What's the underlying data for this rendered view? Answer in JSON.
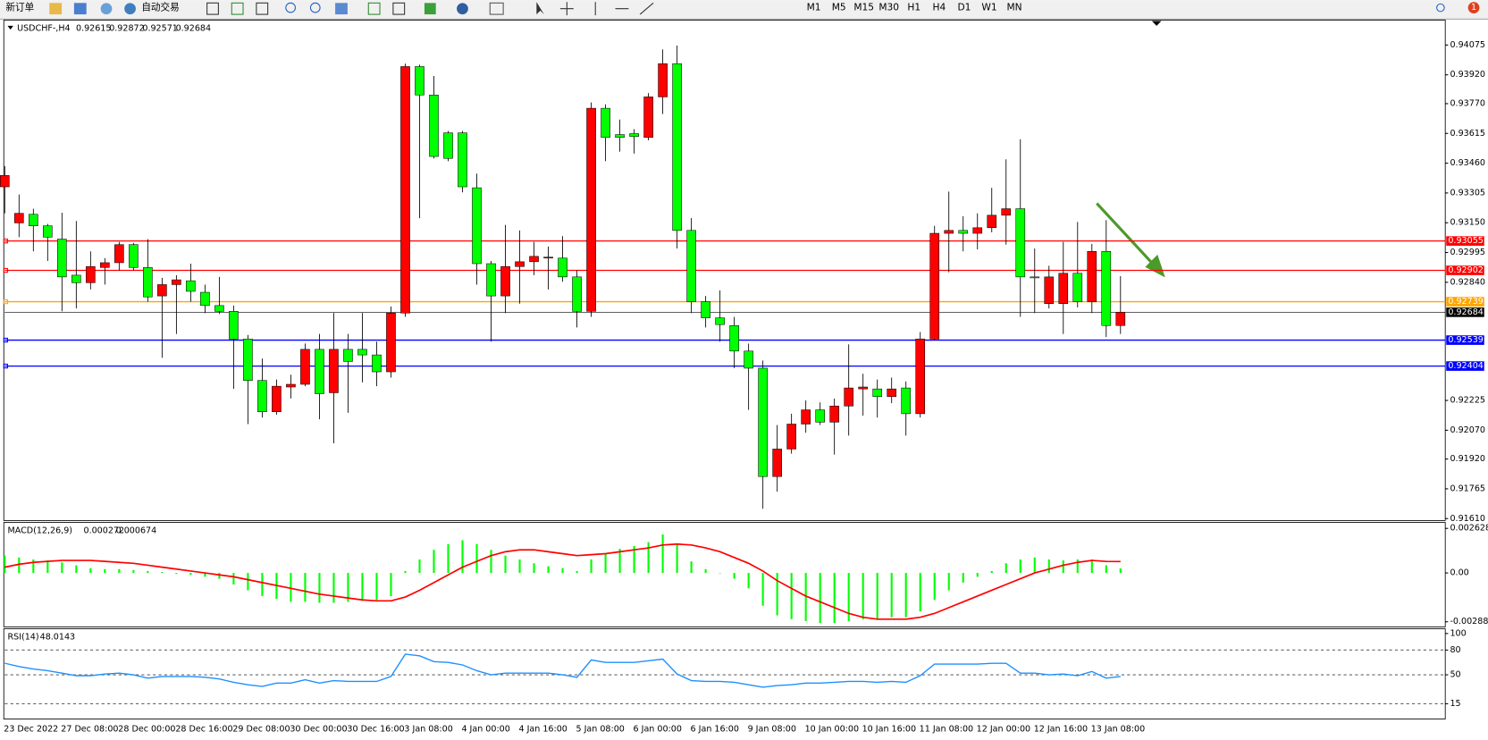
{
  "toolbar": {
    "new_order": "新订单",
    "auto_trading": "自动交易",
    "timeframes": [
      "M1",
      "M5",
      "M15",
      "M30",
      "H1",
      "H4",
      "D1",
      "W1",
      "MN"
    ],
    "notifications": "1"
  },
  "chart_data": [
    {
      "type": "candlestick",
      "symbol": "USDCHF-,H4",
      "up_color": "#ff0000",
      "down_color": "#00ff00",
      "categories": [
        "23 Dec 2022",
        null,
        null,
        null,
        "27 Dec 08:00",
        null,
        null,
        null,
        "28 Dec 00:00",
        null,
        null,
        null,
        "28 Dec 16:00",
        null,
        null,
        null,
        "29 Dec 08:00",
        null,
        null,
        null,
        "30 Dec 00:00",
        null,
        null,
        null,
        "30 Dec 16:00",
        null,
        null,
        null,
        "3 Jan 08:00",
        null,
        null,
        null,
        "4 Jan 00:00",
        null,
        null,
        null,
        "4 Jan 16:00",
        null,
        null,
        null,
        "5 Jan 08:00",
        null,
        null,
        null,
        "6 Jan 00:00",
        null,
        null,
        null,
        "6 Jan 16:00",
        null,
        null,
        null,
        "9 Jan 08:00",
        null,
        null,
        null,
        "10 Jan 00:00",
        null,
        null,
        null,
        "10 Jan 16:00",
        null,
        null,
        null,
        "11 Jan 08:00",
        null,
        null,
        null,
        "12 Jan 00:00",
        null,
        null,
        null,
        "12 Jan 16:00",
        null,
        null,
        null,
        "13 Jan 08:00",
        null,
        null
      ],
      "open": [
        0.93337,
        0.93149,
        0.93194,
        0.93134,
        0.93065,
        0.92877,
        0.92838,
        0.92917,
        0.92942,
        0.93036,
        0.92917,
        0.92769,
        0.92828,
        0.92848,
        0.92788,
        0.92719,
        0.92689,
        0.92545,
        0.92329,
        0.92166,
        0.92295,
        0.92309,
        0.92491,
        0.92265,
        0.92491,
        0.92491,
        0.92462,
        0.92374,
        0.9268,
        0.93963,
        0.93815,
        0.93618,
        0.93618,
        0.93332,
        0.92937,
        0.92769,
        0.92922,
        0.92947,
        0.92966,
        0.92966,
        0.92868,
        0.92689,
        0.93746,
        0.93609,
        0.93614,
        0.93594,
        0.93805,
        0.93978,
        0.9311,
        0.92739,
        0.92655,
        0.92615,
        0.92482,
        0.92393,
        0.91829,
        0.91972,
        0.92102,
        0.92176,
        0.92112,
        0.92196,
        0.92285,
        0.92285,
        0.92245,
        0.9229,
        0.92156,
        0.92545,
        0.93095,
        0.9311,
        0.93095,
        0.93124,
        0.93189,
        0.93223,
        0.92868,
        0.92729,
        0.92729,
        0.92887,
        0.92739,
        0.93001,
        0.92615
      ],
      "high": [
        0.93445,
        0.93297,
        0.93223,
        0.93144,
        0.93202,
        0.93159,
        0.93001,
        0.92966,
        0.9305,
        0.93045,
        0.93065,
        0.92863,
        0.92877,
        0.92937,
        0.92828,
        0.92868,
        0.92719,
        0.92566,
        0.92443,
        0.92334,
        0.92359,
        0.92521,
        0.92571,
        0.9268,
        0.92571,
        0.9268,
        0.92531,
        0.92714,
        0.93978,
        0.93973,
        0.93914,
        0.93628,
        0.93628,
        0.93406,
        0.92951,
        0.93139,
        0.9311,
        0.9305,
        0.93026,
        0.9308,
        0.92902,
        0.93776,
        0.93766,
        0.93687,
        0.93637,
        0.93825,
        0.94052,
        0.94072,
        0.93174,
        0.92769,
        0.92798,
        0.9266,
        0.92521,
        0.92433,
        0.92097,
        0.92156,
        0.92225,
        0.92215,
        0.92235,
        0.92517,
        0.92364,
        0.92334,
        0.92344,
        0.92324,
        0.92581,
        0.93134,
        0.93312,
        0.93184,
        0.93199,
        0.93332,
        0.9348,
        0.93584,
        0.93016,
        0.92926,
        0.9305,
        0.93154,
        0.9304,
        0.93164,
        0.92872
      ],
      "low": [
        0.93199,
        0.93075,
        0.93001,
        0.92951,
        0.92689,
        0.92704,
        0.92803,
        0.92828,
        0.92902,
        0.92902,
        0.92739,
        0.92447,
        0.92571,
        0.92739,
        0.9268,
        0.92675,
        0.92285,
        0.92102,
        0.92136,
        0.92151,
        0.92235,
        0.92299,
        0.92127,
        0.92002,
        0.92161,
        0.92319,
        0.92299,
        0.92344,
        0.9266,
        0.93174,
        0.93485,
        0.9347,
        0.93308,
        0.92828,
        0.92531,
        0.9268,
        0.92729,
        0.92877,
        0.92803,
        0.92843,
        0.92605,
        0.9266,
        0.9347,
        0.9352,
        0.9351,
        0.93579,
        0.93716,
        0.93016,
        0.9268,
        0.92605,
        0.92531,
        0.92393,
        0.92176,
        0.91661,
        0.9175,
        0.91948,
        0.92057,
        0.92097,
        0.91943,
        0.92042,
        0.92146,
        0.92136,
        0.92211,
        0.92042,
        0.92136,
        0.92541,
        0.92892,
        0.93001,
        0.93011,
        0.931,
        0.93036,
        0.9266,
        0.9268,
        0.92704,
        0.92571,
        0.92709,
        0.9268,
        0.92555,
        0.92571
      ],
      "close": [
        0.93396,
        0.93199,
        0.93134,
        0.93075,
        0.92868,
        0.92838,
        0.92922,
        0.92942,
        0.93036,
        0.92917,
        0.92764,
        0.92828,
        0.92853,
        0.92793,
        0.92719,
        0.92689,
        0.92545,
        0.92329,
        0.92166,
        0.92299,
        0.92309,
        0.92491,
        0.9226,
        0.92491,
        0.92428,
        0.92462,
        0.92374,
        0.9268,
        0.93963,
        0.93815,
        0.93495,
        0.93485,
        0.93337,
        0.92937,
        0.92769,
        0.92922,
        0.92947,
        0.92975,
        0.92971,
        0.92868,
        0.92689,
        0.93746,
        0.93594,
        0.93594,
        0.93599,
        0.93805,
        0.93978,
        0.9311,
        0.92739,
        0.92655,
        0.9262,
        0.92482,
        0.92393,
        0.91829,
        0.91972,
        0.92102,
        0.92176,
        0.92112,
        0.92196,
        0.9229,
        0.92295,
        0.92245,
        0.92285,
        0.92156,
        0.92545,
        0.93095,
        0.9311,
        0.93095,
        0.93124,
        0.93189,
        0.93223,
        0.92868,
        0.92863,
        0.92868,
        0.92887,
        0.92739,
        0.93001,
        0.92615,
        0.92684
      ],
      "ylim": [
        0.916,
        0.942
      ],
      "yticks": [
        0.94075,
        {
          "value": 0.9392,
          "label": "0.93920"
        },
        {
          "value": 0.9377,
          "label": "0.93770"
        },
        0.93615,
        {
          "value": 0.9346,
          "label": "0.93460"
        },
        0.93305,
        {
          "value": 0.9315,
          "label": "0.93150"
        },
        0.92995,
        {
          "value": 0.9284,
          "label": "0.92840"
        },
        0.92225,
        {
          "value": 0.9207,
          "label": "0.92070"
        },
        {
          "value": 0.9192,
          "label": "0.91920"
        },
        0.91765,
        {
          "value": 0.9161,
          "label": "0.91610"
        }
      ],
      "hlines": [
        {
          "value": 0.93055,
          "color": "#ff0000"
        },
        {
          "value": 0.92902,
          "color": "#ff0000"
        },
        {
          "value": 0.92739,
          "color": "#ffa500"
        },
        {
          "value": 0.92539,
          "color": "#0000ff"
        },
        {
          "value": 0.92404,
          "color": "#0000ff"
        }
      ]
    },
    {
      "type": "macd",
      "title": "MACD(12,26,9)",
      "histogram_color": "#00ff00",
      "signal_color": "#ff0000",
      "histogram": [
        0.001022,
        0.000909,
        0.000795,
        0.000738,
        0.000625,
        0.000454,
        0.000284,
        0.000227,
        0.000227,
        0.00017,
        0.000114,
        5.7e-05,
        -5.7e-05,
        -0.000114,
        -0.000227,
        -0.000341,
        -0.000682,
        -0.001022,
        -0.001363,
        -0.001534,
        -0.001704,
        -0.001704,
        -0.001761,
        -0.001761,
        -0.001704,
        -0.001647,
        -0.00159,
        -0.001363,
        0.000114,
        0.000795,
        0.001363,
        0.001704,
        0.001931,
        0.001704,
        0.001363,
        0.001022,
        0.000795,
        0.000568,
        0.000398,
        0.000284,
        0.000114,
        0.000795,
        0.001136,
        0.00142,
        0.00159,
        0.001818,
        0.002272,
        0.001704,
        0.000682,
        0.000227,
        0,
        -0.000341,
        -0.000909,
        -0.001931,
        -0.002499,
        -0.002726,
        -0.00284,
        -0.002954,
        -0.002954,
        -0.00284,
        -0.002726,
        -0.002726,
        -0.002613,
        -0.002613,
        -0.002272,
        -0.00159,
        -0.001022,
        -0.000568,
        -0.000227,
        0.000114,
        0.000568,
        0.000795,
        0.000909,
        0.000795,
        0.000738,
        0.000795,
        0.000795,
        0.000454,
        0.000272
      ],
      "signal": [
        0.000341,
        0.000511,
        0.000625,
        0.000682,
        0.000738,
        0.000738,
        0.000738,
        0.000682,
        0.000625,
        0.000568,
        0.000454,
        0.000341,
        0.000227,
        0.000114,
        0,
        -0.000114,
        -0.000227,
        -0.000398,
        -0.000568,
        -0.000738,
        -0.000909,
        -0.001079,
        -0.00125,
        -0.001363,
        -0.001477,
        -0.00159,
        -0.001647,
        -0.001647,
        -0.00142,
        -0.001022,
        -0.000568,
        -0.000114,
        0.000341,
        0.000682,
        0.001022,
        0.00125,
        0.001363,
        0.001363,
        0.00125,
        0.001136,
        0.001022,
        0.001079,
        0.001136,
        0.00125,
        0.001363,
        0.001477,
        0.001647,
        0.001704,
        0.001647,
        0.001477,
        0.00125,
        0.000909,
        0.000568,
        0.000114,
        -0.000454,
        -0.000909,
        -0.001363,
        -0.001704,
        -0.002045,
        -0.002386,
        -0.002613,
        -0.002726,
        -0.002726,
        -0.002726,
        -0.002613,
        -0.002386,
        -0.002045,
        -0.001704,
        -0.001363,
        -0.001022,
        -0.000682,
        -0.000341,
        0,
        0.000227,
        0.000454,
        0.000625,
        0.000738,
        0.00068,
        0.000674
      ],
      "ylim": [
        -0.00318,
        0.00298
      ],
      "yticks": [
        0.002628,
        {
          "value": 0,
          "label": "0.00"
        },
        -0.002881
      ]
    },
    {
      "type": "line",
      "title": "RSI(14)",
      "color": "#1e90ff",
      "values": [
        64,
        60,
        57,
        55,
        52,
        49,
        49,
        51,
        52,
        50,
        46,
        48,
        48,
        48,
        47,
        45,
        41,
        38,
        36,
        40,
        40,
        44,
        40,
        43,
        42,
        42,
        42,
        48,
        75,
        73,
        66,
        65,
        62,
        55,
        50,
        52,
        52,
        52,
        52,
        50,
        47,
        68,
        65,
        65,
        65,
        67,
        69,
        51,
        43,
        42,
        42,
        41,
        38,
        35,
        37,
        38,
        40,
        40,
        41,
        42,
        42,
        41,
        42,
        41,
        49,
        63,
        63,
        63,
        63,
        64,
        64,
        52,
        52,
        50,
        51,
        49,
        54,
        46,
        48.0143
      ],
      "ylim": [
        0,
        100
      ],
      "yticks": [
        100,
        80,
        50,
        15
      ]
    }
  ]
}
